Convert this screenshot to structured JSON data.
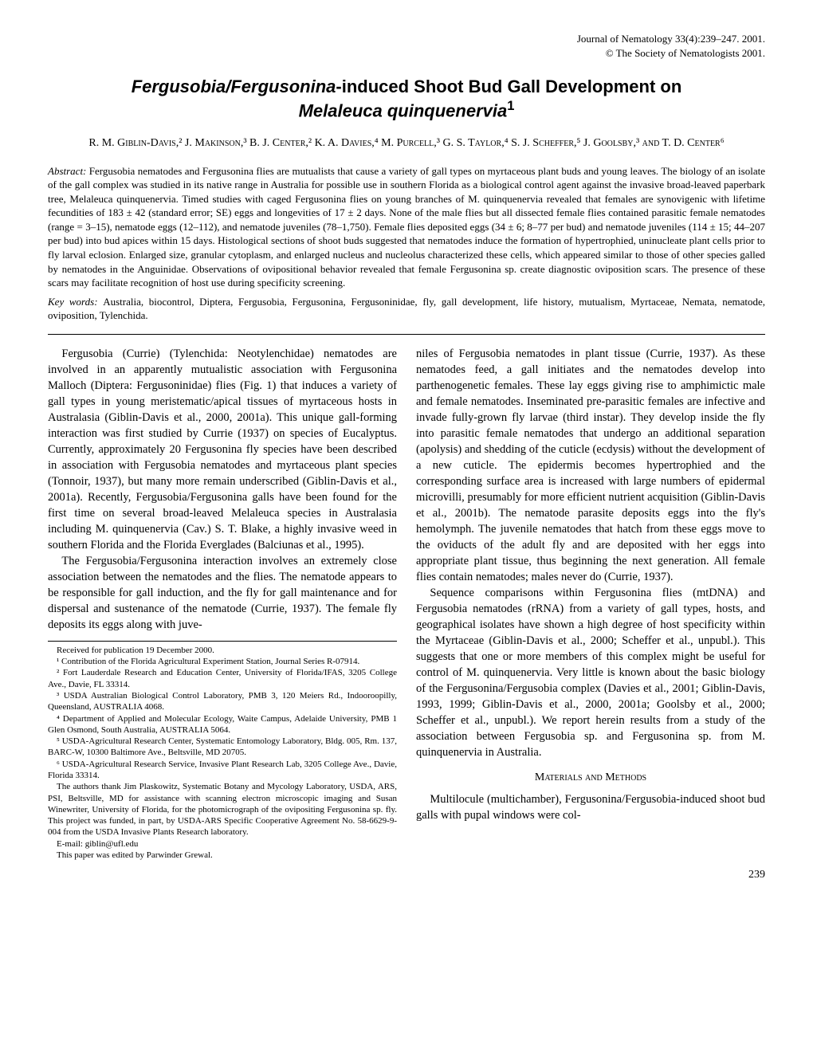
{
  "journal": {
    "line1": "Journal of Nematology 33(4):239–247. 2001.",
    "line2": "© The Society of Nematologists 2001."
  },
  "title": {
    "pre": "Fergusobia/Fergusonina",
    "post": "-induced Shoot Bud Gall Development on",
    "line2": "Melaleuca quinquenervia",
    "sup": "1"
  },
  "authors": "R. M. Giblin-Davis,² J. Makinson,³ B. J. Center,² K. A. Davies,⁴ M. Purcell,³ G. S. Taylor,⁴ S. J. Scheffer,⁵ J. Goolsby,³ and T. D. Center⁶",
  "abstract": {
    "label": "Abstract: ",
    "text": "Fergusobia nematodes and Fergusonina flies are mutualists that cause a variety of gall types on myrtaceous plant buds and young leaves. The biology of an isolate of the gall complex was studied in its native range in Australia for possible use in southern Florida as a biological control agent against the invasive broad-leaved paperbark tree, Melaleuca quinquenervia. Timed studies with caged Fergusonina flies on young branches of M. quinquenervia revealed that females are synovigenic with lifetime fecundities of 183 ± 42 (standard error; SE) eggs and longevities of 17 ± 2 days. None of the male flies but all dissected female flies contained parasitic female nematodes (range = 3–15), nematode eggs (12–112), and nematode juveniles (78–1,750). Female flies deposited eggs (34 ± 6; 8–77 per bud) and nematode juveniles (114 ± 15; 44–207 per bud) into bud apices within 15 days. Histological sections of shoot buds suggested that nematodes induce the formation of hypertrophied, uninucleate plant cells prior to fly larval eclosion. Enlarged size, granular cytoplasm, and enlarged nucleus and nucleolus characterized these cells, which appeared similar to those of other species galled by nematodes in the Anguinidae. Observations of ovipositional behavior revealed that female Fergusonina sp. create diagnostic oviposition scars. The presence of these scars may facilitate recognition of host use during specificity screening."
  },
  "keywords": {
    "label": "Key words: ",
    "text": "Australia, biocontrol, Diptera, Fergusobia, Fergusonina, Fergusoninidae, fly, gall development, life history, mutualism, Myrtaceae, Nemata, nematode, oviposition, Tylenchida."
  },
  "body": {
    "col1_p1": "Fergusobia (Currie) (Tylenchida: Neotylenchidae) nematodes are involved in an apparently mutualistic association with Fergusonina Malloch (Diptera: Fergusoninidae) flies (Fig. 1) that induces a variety of gall types in young meristematic/apical tissues of myrtaceous hosts in Australasia (Giblin-Davis et al., 2000, 2001a). This unique gall-forming interaction was first studied by Currie (1937) on species of Eucalyptus. Currently, approximately 20 Fergusonina fly species have been described in association with Fergusobia nematodes and myrtaceous plant species (Tonnoir, 1937), but many more remain underscribed (Giblin-Davis et al., 2001a). Recently, Fergusobia/Fergusonina galls have been found for the first time on several broad-leaved Melaleuca species in Australasia including M. quinquenervia (Cav.) S. T. Blake, a highly invasive weed in southern Florida and the Florida Everglades (Balciunas et al., 1995).",
    "col1_p2": "The Fergusobia/Fergusonina interaction involves an extremely close association between the nematodes and the flies. The nematode appears to be responsible for gall induction, and the fly for gall maintenance and for dispersal and sustenance of the nematode (Currie, 1937). The female fly deposits its eggs along with juve-",
    "col2_p1": "niles of Fergusobia nematodes in plant tissue (Currie, 1937). As these nematodes feed, a gall initiates and the nematodes develop into parthenogenetic females. These lay eggs giving rise to amphimictic male and female nematodes. Inseminated pre-parasitic females are infective and invade fully-grown fly larvae (third instar). They develop inside the fly into parasitic female nematodes that undergo an additional separation (apolysis) and shedding of the cuticle (ecdysis) without the development of a new cuticle. The epidermis becomes hypertrophied and the corresponding surface area is increased with large numbers of epidermal microvilli, presumably for more efficient nutrient acquisition (Giblin-Davis et al., 2001b). The nematode parasite deposits eggs into the fly's hemolymph. The juvenile nematodes that hatch from these eggs move to the oviducts of the adult fly and are deposited with her eggs into appropriate plant tissue, thus beginning the next generation. All female flies contain nematodes; males never do (Currie, 1937).",
    "col2_p2": "Sequence comparisons within Fergusonina flies (mtDNA) and Fergusobia nematodes (rRNA) from a variety of gall types, hosts, and geographical isolates have shown a high degree of host specificity within the Myrtaceae (Giblin-Davis et al., 2000; Scheffer et al., unpubl.). This suggests that one or more members of this complex might be useful for control of M. quinquenervia. Very little is known about the basic biology of the Fergusonina/Fergusobia complex (Davies et al., 2001; Giblin-Davis, 1993, 1999; Giblin-Davis et al., 2000, 2001a; Goolsby et al., 2000; Scheffer et al., unpubl.). We report herein results from a study of the association between Fergusobia sp. and Fergusonina sp. from M. quinquenervia in Australia.",
    "mm_heading": "Materials and Methods",
    "mm_p1": "Multilocule (multichamber), Fergusonina/Fergusobia-induced shoot bud galls with pupal windows were col-"
  },
  "footnotes": {
    "received": "Received for publication 19 December 2000.",
    "f1": "¹ Contribution of the Florida Agricultural Experiment Station, Journal Series R-07914.",
    "f2": "² Fort Lauderdale Research and Education Center, University of Florida/IFAS, 3205 College Ave., Davie, FL 33314.",
    "f3": "³ USDA Australian Biological Control Laboratory, PMB 3, 120 Meiers Rd., Indooroopilly, Queensland, AUSTRALIA 4068.",
    "f4": "⁴ Department of Applied and Molecular Ecology, Waite Campus, Adelaide University, PMB 1 Glen Osmond, South Australia, AUSTRALIA 5064.",
    "f5": "⁵ USDA-Agricultural Research Center, Systematic Entomology Laboratory, Bldg. 005, Rm. 137, BARC-W, 10300 Baltimore Ave., Beltsville, MD 20705.",
    "f6": "⁶ USDA-Agricultural Research Service, Invasive Plant Research Lab, 3205 College Ave., Davie, Florida 33314.",
    "ack": "The authors thank Jim Plaskowitz, Systematic Botany and Mycology Laboratory, USDA, ARS, PSI, Beltsville, MD for assistance with scanning electron microscopic imaging and Susan Winewriter, University of Florida, for the photomicrograph of the ovipositing Fergusonina sp. fly. This project was funded, in part, by USDA-ARS Specific Cooperative Agreement No. 58-6629-9-004 from the USDA Invasive Plants Research laboratory.",
    "email": "E-mail: giblin@ufl.edu",
    "editor": "This paper was edited by Parwinder Grewal."
  },
  "page_number": "239"
}
